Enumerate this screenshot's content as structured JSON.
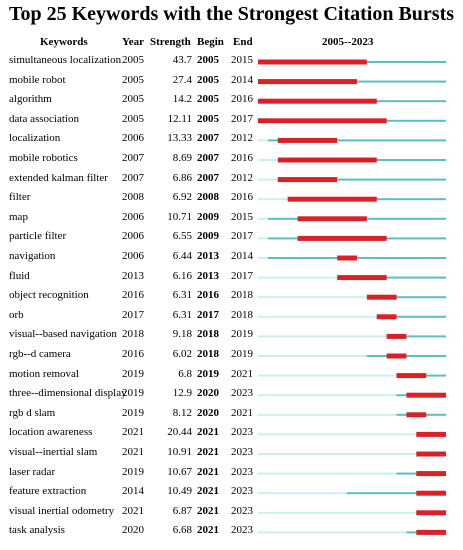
{
  "chart_data": {
    "type": "table",
    "title": "Top 25 Keywords with the Strongest Citation Bursts",
    "columns": [
      "Keywords",
      "Year",
      "Strength",
      "Begin",
      "End",
      "2005--2023"
    ],
    "range": [
      2005,
      2023
    ],
    "colors": {
      "burst": "#d92127",
      "active": "#5bc0bd",
      "inactive": "#cdeeee"
    },
    "rows": [
      {
        "keyword": "simultaneous localization",
        "year": "2005",
        "strength": "43.7",
        "begin": "2005",
        "end": "2015"
      },
      {
        "keyword": "mobile robot",
        "year": "2005",
        "strength": "27.4",
        "begin": "2005",
        "end": "2014"
      },
      {
        "keyword": "algorithm",
        "year": "2005",
        "strength": "14.2",
        "begin": "2005",
        "end": "2016"
      },
      {
        "keyword": "data association",
        "year": "2005",
        "strength": "12.11",
        "begin": "2005",
        "end": "2017"
      },
      {
        "keyword": "localization",
        "year": "2006",
        "strength": "13.33",
        "begin": "2007",
        "end": "2012"
      },
      {
        "keyword": "mobile robotics",
        "year": "2007",
        "strength": "8.69",
        "begin": "2007",
        "end": "2016"
      },
      {
        "keyword": "extended kalman filter",
        "year": "2007",
        "strength": "6.86",
        "begin": "2007",
        "end": "2012"
      },
      {
        "keyword": "filter",
        "year": "2008",
        "strength": "6.92",
        "begin": "2008",
        "end": "2016"
      },
      {
        "keyword": "map",
        "year": "2006",
        "strength": "10.71",
        "begin": "2009",
        "end": "2015"
      },
      {
        "keyword": "particle filter",
        "year": "2006",
        "strength": "6.55",
        "begin": "2009",
        "end": "2017"
      },
      {
        "keyword": "navigation",
        "year": "2006",
        "strength": "6.44",
        "begin": "2013",
        "end": "2014"
      },
      {
        "keyword": "fluid",
        "year": "2013",
        "strength": "6.16",
        "begin": "2013",
        "end": "2017"
      },
      {
        "keyword": "object recognition",
        "year": "2016",
        "strength": "6.31",
        "begin": "2016",
        "end": "2018"
      },
      {
        "keyword": "orb",
        "year": "2017",
        "strength": "6.31",
        "begin": "2017",
        "end": "2018"
      },
      {
        "keyword": "visual--based navigation",
        "year": "2018",
        "strength": "9.18",
        "begin": "2018",
        "end": "2019"
      },
      {
        "keyword": "rgb--d camera",
        "year": "2016",
        "strength": "6.02",
        "begin": "2018",
        "end": "2019"
      },
      {
        "keyword": "motion removal",
        "year": "2019",
        "strength": "6.8",
        "begin": "2019",
        "end": "2021"
      },
      {
        "keyword": "three--dimensional display",
        "year": "2019",
        "strength": "12.9",
        "begin": "2020",
        "end": "2023"
      },
      {
        "keyword": "rgb d slam",
        "year": "2019",
        "strength": "8.12",
        "begin": "2020",
        "end": "2021"
      },
      {
        "keyword": "location awareness",
        "year": "2021",
        "strength": "20.44",
        "begin": "2021",
        "end": "2023"
      },
      {
        "keyword": "visual--inertial slam",
        "year": "2021",
        "strength": "10.91",
        "begin": "2021",
        "end": "2023"
      },
      {
        "keyword": "laser radar",
        "year": "2019",
        "strength": "10.67",
        "begin": "2021",
        "end": "2023"
      },
      {
        "keyword": "feature extraction",
        "year": "2014",
        "strength": "10.49",
        "begin": "2021",
        "end": "2023"
      },
      {
        "keyword": "visual inertial odometry",
        "year": "2021",
        "strength": "6.87",
        "begin": "2021",
        "end": "2023"
      },
      {
        "keyword": "task analysis",
        "year": "2020",
        "strength": "6.68",
        "begin": "2021",
        "end": "2023"
      }
    ]
  }
}
